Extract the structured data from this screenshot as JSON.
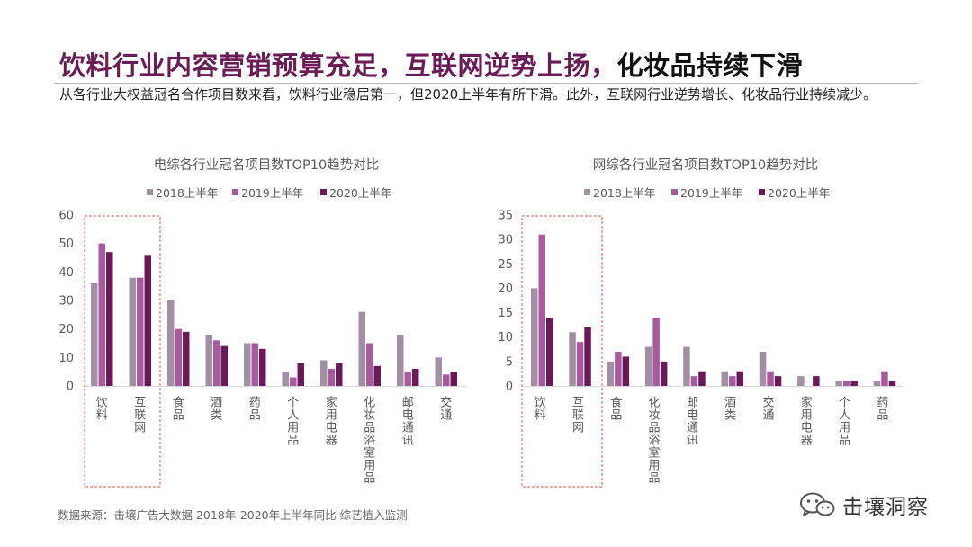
{
  "header": {
    "title_part1": "饮料行业内容营销预算充足，互联网逆势上扬，",
    "title_part2": "化妆品持续下滑",
    "subtitle": "从各行业大权益冠名合作项目数来看，饮料行业稳居第一，但2020上半年有所下滑。此外，互联网行业逆势增长、化妆品行业持续减少。"
  },
  "colors": {
    "title": "#6b1b55",
    "series_2018": "#a28fa3",
    "series_2019": "#a75b9e",
    "series_2020": "#6a1a58",
    "highlight_box": "#e05050"
  },
  "chart_data": [
    {
      "type": "bar",
      "title": "电综各行业冠名项目数TOP10趋势对比",
      "categories": [
        "饮料",
        "互联网",
        "食品",
        "酒类",
        "药品",
        "个人用品",
        "家用电器",
        "化妆品浴室用品",
        "邮电通讯",
        "交通"
      ],
      "series": [
        {
          "name": "2018上半年",
          "values": [
            36,
            38,
            30,
            18,
            15,
            5,
            9,
            26,
            18,
            10
          ]
        },
        {
          "name": "2019上半年",
          "values": [
            50,
            38,
            20,
            16,
            15,
            3,
            6,
            15,
            5,
            4
          ]
        },
        {
          "name": "2020上半年",
          "values": [
            47,
            46,
            19,
            14,
            13,
            8,
            8,
            7,
            6,
            5
          ]
        }
      ],
      "ylim": [
        0,
        60
      ],
      "yticks": [
        0,
        10,
        20,
        30,
        40,
        50,
        60
      ],
      "legend": "top",
      "grid": false
    },
    {
      "type": "bar",
      "title": "网综各行业冠名项目数TOP10趋势对比",
      "categories": [
        "饮料",
        "互联网",
        "食品",
        "化妆品浴室用品",
        "邮电通讯",
        "酒类",
        "交通",
        "家用电器",
        "个人用品",
        "药品"
      ],
      "series": [
        {
          "name": "2018上半年",
          "values": [
            20,
            11,
            5,
            8,
            8,
            3,
            7,
            2,
            1,
            1
          ]
        },
        {
          "name": "2019上半年",
          "values": [
            31,
            9,
            7,
            14,
            2,
            2,
            3,
            0,
            1,
            3
          ]
        },
        {
          "name": "2020上半年",
          "values": [
            14,
            12,
            6,
            5,
            3,
            3,
            2,
            2,
            1,
            1
          ]
        }
      ],
      "ylim": [
        0,
        35
      ],
      "yticks": [
        0,
        5,
        10,
        15,
        20,
        25,
        30,
        35
      ],
      "legend": "top",
      "grid": false
    }
  ],
  "footer": {
    "source": "数据来源：击壤广告大数据 2018年-2020年上半年同比 综艺植入监测",
    "brand_name": "击壤洞察",
    "brand_logo_icon": "wechat-icon"
  }
}
